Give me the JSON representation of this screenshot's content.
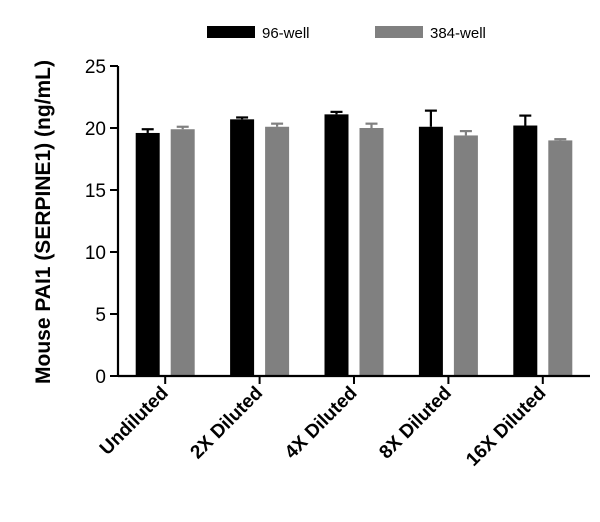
{
  "chart_data": {
    "type": "bar",
    "title": "",
    "xlabel": "",
    "ylabel": "Mouse PAI1 (SERPINE1) (ng/mL)",
    "ylim": [
      0,
      25
    ],
    "yticks": [
      0,
      5,
      10,
      15,
      20,
      25
    ],
    "categories": [
      "Undiluted",
      "2X Diluted",
      "4X Diluted",
      "8X Diluted",
      "16X Diluted"
    ],
    "legend_position": "top-center",
    "grid": false,
    "series": [
      {
        "name": "96-well",
        "color": "#000000",
        "values": [
          19.6,
          20.7,
          21.1,
          20.1,
          20.2
        ],
        "errors": [
          0.3,
          0.15,
          0.2,
          1.3,
          0.8
        ]
      },
      {
        "name": "384-well",
        "color": "#808080",
        "values": [
          19.9,
          20.1,
          20.0,
          19.4,
          19.0
        ],
        "errors": [
          0.2,
          0.25,
          0.35,
          0.35,
          0.1
        ]
      }
    ]
  }
}
